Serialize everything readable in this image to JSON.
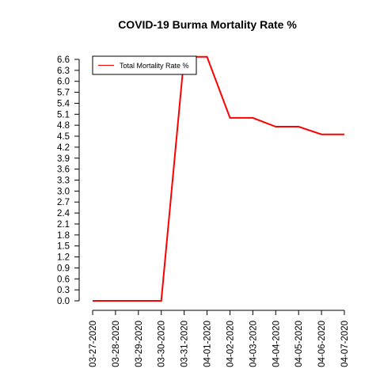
{
  "chart_data": {
    "type": "line",
    "title": "COVID-19 Burma Mortality Rate %",
    "xlabel": "",
    "ylabel": "",
    "categories": [
      "03-27-2020",
      "03-28-2020",
      "03-29-2020",
      "03-30-2020",
      "03-31-2020",
      "04-01-2020",
      "04-02-2020",
      "04-03-2020",
      "04-04-2020",
      "04-05-2020",
      "04-06-2020",
      "04-07-2020"
    ],
    "series": [
      {
        "name": "Total Mortality Rate %",
        "color": "#ff0000",
        "values": [
          0,
          0,
          0,
          0,
          6.67,
          6.67,
          5.0,
          5.0,
          4.76,
          4.76,
          4.55,
          4.55
        ]
      }
    ],
    "yticks": [
      "0.0",
      "0.3",
      "0.6",
      "0.9",
      "1.2",
      "1.5",
      "1.8",
      "2.1",
      "2.4",
      "2.7",
      "3.0",
      "3.3",
      "3.6",
      "3.9",
      "4.2",
      "4.5",
      "4.8",
      "5.1",
      "5.4",
      "5.7",
      "6.0",
      "6.3",
      "6.6"
    ],
    "ylim": [
      0,
      6.67
    ],
    "grid": false,
    "legend_position": "top-left"
  }
}
